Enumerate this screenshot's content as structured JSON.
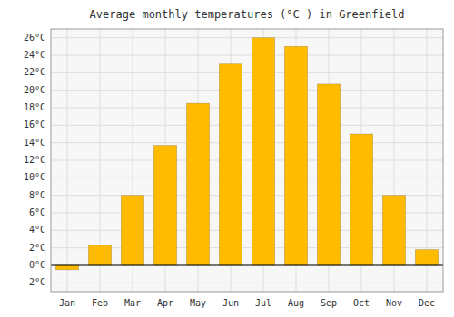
{
  "chart_data": {
    "type": "bar",
    "title": "Average monthly temperatures (°C ) in Greenfield",
    "categories": [
      "Jan",
      "Feb",
      "Mar",
      "Apr",
      "May",
      "Jun",
      "Jul",
      "Aug",
      "Sep",
      "Oct",
      "Nov",
      "Dec"
    ],
    "values": [
      -0.5,
      2.3,
      8.0,
      13.7,
      18.5,
      23.0,
      26.0,
      25.0,
      20.7,
      15.0,
      8.0,
      1.8
    ],
    "color": "#FFBB00",
    "ylim": [
      -3,
      27
    ],
    "yticks": [
      {
        "value": -2,
        "label": "-2°C"
      },
      {
        "value": 0,
        "label": "0°C"
      },
      {
        "value": 2,
        "label": "2°C"
      },
      {
        "value": 4,
        "label": "4°C"
      },
      {
        "value": 6,
        "label": "6°C"
      },
      {
        "value": 8,
        "label": "8°C"
      },
      {
        "value": 10,
        "label": "10°C"
      },
      {
        "value": 12,
        "label": "12°C"
      },
      {
        "value": 14,
        "label": "14°C"
      },
      {
        "value": 16,
        "label": "16°C"
      },
      {
        "value": 18,
        "label": "18°C"
      },
      {
        "value": 20,
        "label": "20°C"
      },
      {
        "value": 22,
        "label": "22°C"
      },
      {
        "value": 24,
        "label": "24°C"
      },
      {
        "value": 26,
        "label": "26°C"
      }
    ],
    "grid": true
  }
}
